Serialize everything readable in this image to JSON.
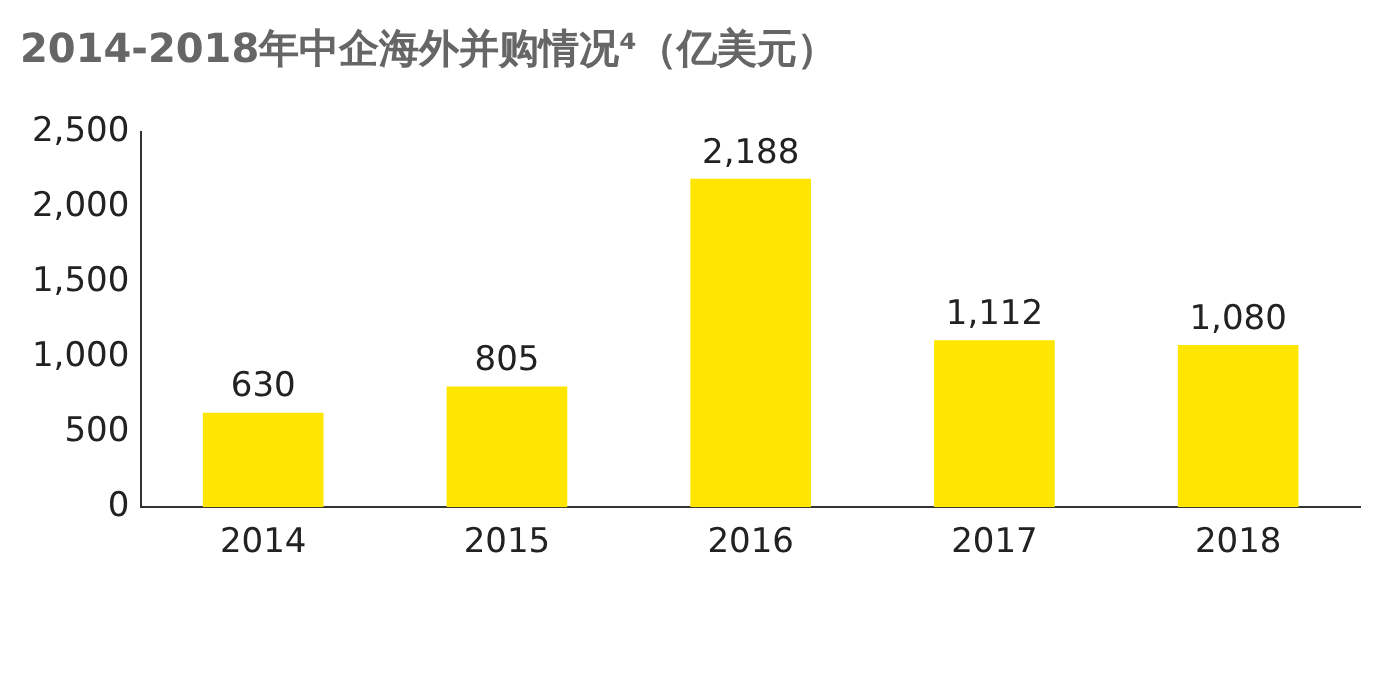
{
  "chart_data": {
    "type": "bar",
    "title": "2014-2018年中企海外并购情况⁴（亿美元）",
    "categories": [
      "2014",
      "2015",
      "2016",
      "2017",
      "2018"
    ],
    "values": [
      630,
      805,
      2188,
      1112,
      1080
    ],
    "value_labels": [
      "630",
      "805",
      "2,188",
      "1,112",
      "1,080"
    ],
    "color": "#ffe600",
    "ylim": [
      0,
      2500
    ],
    "yticks": [
      {
        "value": 0,
        "label": "0"
      },
      {
        "value": 500,
        "label": "500"
      },
      {
        "value": 1000,
        "label": "1,000"
      },
      {
        "value": 1500,
        "label": "1,500"
      },
      {
        "value": 2000,
        "label": "2,000"
      },
      {
        "value": 2500,
        "label": "2,500"
      }
    ],
    "grid": false,
    "legend": false
  }
}
